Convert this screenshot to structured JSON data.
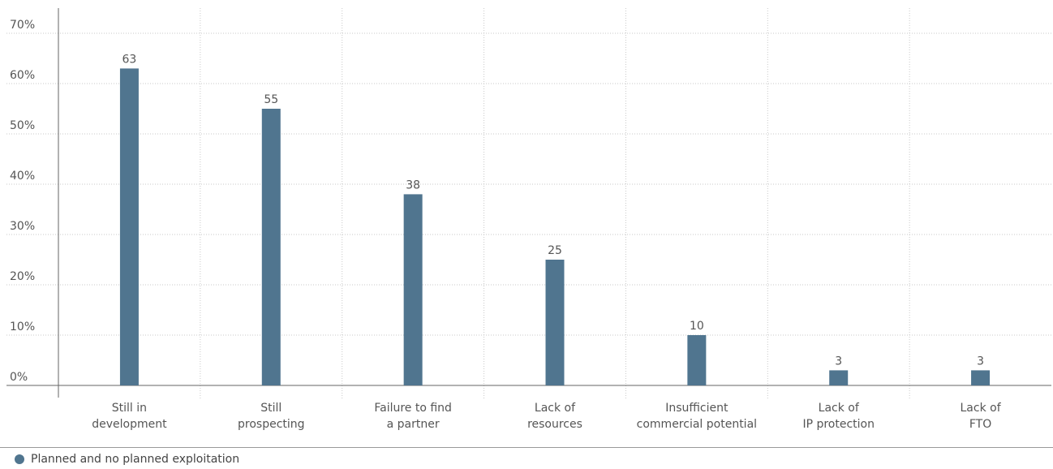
{
  "chart_data": {
    "type": "bar",
    "categories": [
      [
        "Still in",
        "development"
      ],
      [
        "Still",
        "prospecting"
      ],
      [
        "Failure to find",
        "a partner"
      ],
      [
        "Lack of",
        "resources"
      ],
      [
        "Insufficient",
        "commercial potential"
      ],
      [
        "Lack of",
        "IP protection"
      ],
      [
        "Lack of",
        "FTO"
      ]
    ],
    "series": [
      {
        "name": "Planned and no planned exploitation",
        "values": [
          63,
          55,
          38,
          25,
          10,
          3,
          3
        ]
      }
    ],
    "yticks": [
      "0%",
      "10%",
      "20%",
      "30%",
      "40%",
      "50%",
      "60%",
      "70%"
    ],
    "ylim": [
      0,
      70
    ],
    "bar_color": "#50758f",
    "grid": true
  },
  "legend": {
    "label": "Planned and no planned exploitation",
    "color": "#50758f"
  }
}
